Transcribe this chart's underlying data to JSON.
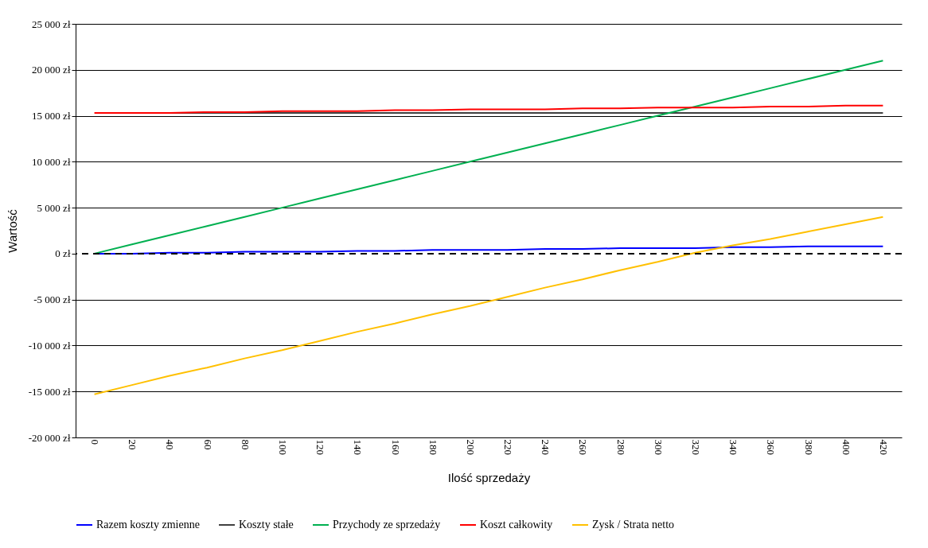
{
  "chart_data": {
    "type": "line",
    "xlabel": "Ilość sprzedaży",
    "ylabel": "Wartość",
    "categories": [
      "0",
      "20",
      "40",
      "60",
      "80",
      "100",
      "120",
      "140",
      "160",
      "180",
      "200",
      "220",
      "240",
      "260",
      "280",
      "300",
      "320",
      "340",
      "360",
      "380",
      "400",
      "420"
    ],
    "series": [
      {
        "name": "Razem koszty zmienne",
        "color": "#0000ff",
        "values": [
          0,
          0,
          100,
          100,
          200,
          200,
          200,
          300,
          300,
          400,
          400,
          400,
          500,
          500,
          600,
          600,
          600,
          700,
          700,
          800,
          800,
          800
        ]
      },
      {
        "name": "Koszty stałe",
        "color": "#404040",
        "values": [
          null,
          null,
          15300,
          15300,
          15300,
          15300,
          15300,
          15300,
          15300,
          15300,
          15300,
          15300,
          15300,
          15300,
          15300,
          15300,
          15300,
          15300,
          15300,
          15300,
          15300,
          15300
        ]
      },
      {
        "name": "Przychody ze sprzedaży",
        "color": "#00b050",
        "values": [
          0,
          1000,
          2000,
          3000,
          4000,
          5000,
          6000,
          7000,
          8000,
          9000,
          10000,
          11000,
          12000,
          13000,
          14000,
          15000,
          16000,
          17000,
          18000,
          19000,
          20000,
          21000
        ]
      },
      {
        "name": "Koszt całkowity",
        "color": "#ff0000",
        "values": [
          15300,
          15300,
          15300,
          15400,
          15400,
          15500,
          15500,
          15500,
          15600,
          15600,
          15700,
          15700,
          15700,
          15800,
          15800,
          15900,
          15900,
          15900,
          16000,
          16000,
          16100,
          16100
        ]
      },
      {
        "name": "Zysk / Strata netto",
        "color": "#ffc000",
        "values": [
          -15300,
          -14300,
          -13300,
          -12400,
          -11400,
          -10500,
          -9500,
          -8500,
          -7600,
          -6600,
          -5700,
          -4700,
          -3700,
          -2800,
          -1800,
          -900,
          100,
          900,
          1600,
          2400,
          3200,
          4000
        ]
      }
    ],
    "ylim": [
      -20000,
      25000
    ],
    "yticks": [
      {
        "value": -20000,
        "label": "-20 000 zł"
      },
      {
        "value": -15000,
        "label": "-15 000 zł"
      },
      {
        "value": -10000,
        "label": "-10 000 zł"
      },
      {
        "value": -5000,
        "label": "-5 000 zł"
      },
      {
        "value": 0,
        "label": "0 zł"
      },
      {
        "value": 5000,
        "label": "5 000 zł"
      },
      {
        "value": 10000,
        "label": "10 000 zł"
      },
      {
        "value": 15000,
        "label": "15 000 zł"
      },
      {
        "value": 20000,
        "label": "20 000 zł"
      },
      {
        "value": 25000,
        "label": "25 000 zł"
      }
    ],
    "ref_lines": [
      {
        "axis": "y",
        "value": 0,
        "color": "#000000",
        "line_style": "dashed"
      }
    ],
    "grid": "y",
    "legend": "bottom",
    "marker": "none",
    "line_style": "solid"
  }
}
